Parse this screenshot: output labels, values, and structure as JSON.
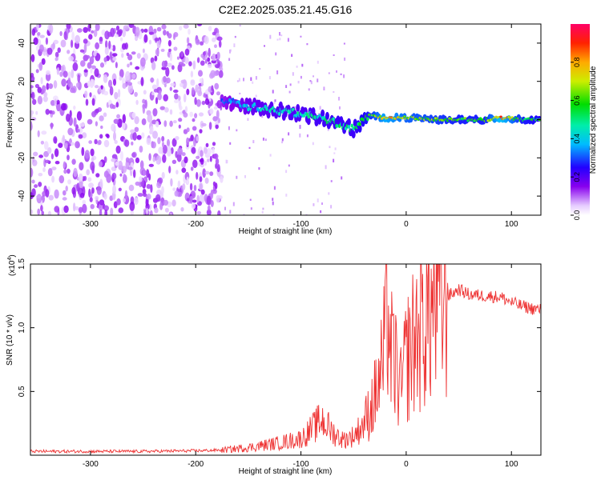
{
  "title": "C2E2.2025.035.21.45.G16",
  "chart_data": [
    {
      "type": "heatmap",
      "xlabel": "Height of straight line (km)",
      "ylabel": "Frequency (Hz)",
      "xlim": [
        -357,
        128
      ],
      "ylim": [
        -50,
        50
      ],
      "xticks": [
        -300,
        -200,
        -100,
        0,
        100
      ],
      "xtick_labels": [
        "-300",
        "-200",
        "-100",
        "0",
        "100"
      ],
      "yticks": [
        -40,
        -20,
        0,
        20,
        40
      ],
      "ytick_labels": [
        "-40",
        "-20",
        "0",
        "20",
        "40"
      ],
      "colorbar": {
        "label": "Normalized spectral amplitude",
        "range": [
          0,
          1
        ],
        "ticks": [
          0.0,
          0.2,
          0.4,
          0.6,
          0.8
        ],
        "tick_labels": [
          "0.0",
          "0.2",
          "0.4",
          "0.6",
          "0.8"
        ]
      },
      "noise_region": {
        "x_range": [
          -357,
          -175
        ],
        "freq_range": [
          -50,
          50
        ],
        "amplitude": 0.1
      },
      "signal_track": [
        {
          "x": -175,
          "freq": 10,
          "amplitude": 0.3
        },
        {
          "x": -150,
          "freq": 7,
          "amplitude": 0.4
        },
        {
          "x": -125,
          "freq": 5,
          "amplitude": 0.45
        },
        {
          "x": -100,
          "freq": 3,
          "amplitude": 0.45
        },
        {
          "x": -75,
          "freq": 0,
          "amplitude": 0.5
        },
        {
          "x": -50,
          "freq": -5,
          "amplitude": 0.5
        },
        {
          "x": -35,
          "freq": 2,
          "amplitude": 0.6
        },
        {
          "x": -20,
          "freq": 1,
          "amplitude": 0.8
        },
        {
          "x": 0,
          "freq": 1,
          "amplitude": 0.7
        },
        {
          "x": 25,
          "freq": 0,
          "amplitude": 0.65
        },
        {
          "x": 50,
          "freq": 0,
          "amplitude": 0.6
        },
        {
          "x": 75,
          "freq": 0,
          "amplitude": 0.6
        },
        {
          "x": 90,
          "freq": 1,
          "amplitude": 0.85
        },
        {
          "x": 110,
          "freq": 0,
          "amplitude": 0.6
        },
        {
          "x": 128,
          "freq": 0,
          "amplitude": 0.55
        }
      ]
    },
    {
      "type": "line",
      "xlabel": "Height of straight line (km)",
      "ylabel": "SNR (10 * v/v)",
      "y_multiplier_label": "(x10",
      "y_multiplier_exp": "4",
      "y_multiplier_close": ")",
      "xlim": [
        -357,
        128
      ],
      "ylim": [
        0,
        1.5
      ],
      "xticks": [
        -300,
        -200,
        -100,
        0,
        100
      ],
      "xtick_labels": [
        "-300",
        "-200",
        "-100",
        "0",
        "100"
      ],
      "yticks": [
        0.5,
        1.0,
        1.5
      ],
      "ytick_labels": [
        "0.5",
        "1.0",
        "1.5"
      ],
      "series": [
        {
          "color": "#ee3333",
          "x": [
            -357,
            -300,
            -250,
            -200,
            -175,
            -150,
            -125,
            -100,
            -90,
            -80,
            -70,
            -60,
            -50,
            -40,
            -35,
            -30,
            -25,
            -20,
            -18,
            -15,
            -10,
            -5,
            0,
            10,
            20,
            30,
            40,
            50,
            60,
            75,
            90,
            100,
            110,
            120,
            128
          ],
          "y": [
            0.03,
            0.03,
            0.03,
            0.035,
            0.04,
            0.06,
            0.09,
            0.13,
            0.2,
            0.28,
            0.18,
            0.12,
            0.15,
            0.25,
            0.35,
            0.45,
            0.6,
            0.85,
            1.3,
            0.8,
            0.7,
            0.5,
            0.75,
            0.95,
            1.1,
            1.2,
            1.25,
            1.3,
            1.26,
            1.25,
            1.24,
            1.2,
            1.17,
            1.15,
            1.14
          ]
        }
      ]
    }
  ]
}
